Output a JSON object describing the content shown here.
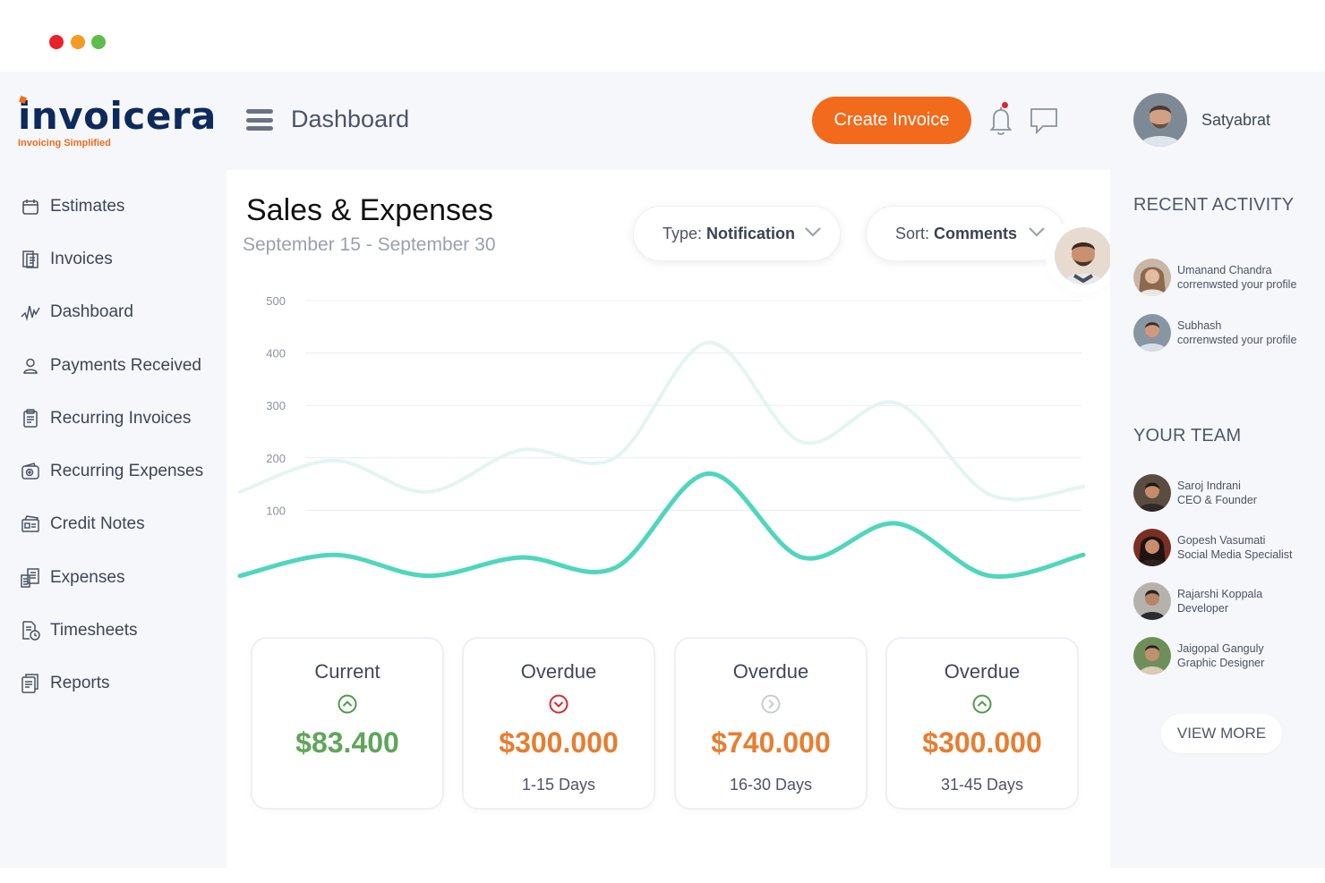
{
  "window": {
    "controls": [
      "close",
      "minimize",
      "maximize"
    ]
  },
  "brand": {
    "name": "invoicera",
    "tagline": "Invoicing Simplified",
    "navy": "#0e2a5c",
    "accent": "#f26a1b"
  },
  "sidebar": {
    "items": [
      {
        "label": "Estimates",
        "icon": "calendar-icon"
      },
      {
        "label": "Invoices",
        "icon": "invoice-icon"
      },
      {
        "label": "Dashboard",
        "icon": "activity-icon"
      },
      {
        "label": "Payments Received",
        "icon": "user-icon"
      },
      {
        "label": "Recurring Invoices",
        "icon": "document-icon"
      },
      {
        "label": "Recurring Expenses",
        "icon": "wallet-icon"
      },
      {
        "label": "Credit Notes",
        "icon": "credit-note-icon"
      },
      {
        "label": "Expenses",
        "icon": "receipt-icon"
      },
      {
        "label": "Timesheets",
        "icon": "timesheet-icon"
      },
      {
        "label": "Reports",
        "icon": "report-icon"
      }
    ]
  },
  "header": {
    "title": "Dashboard",
    "create_label": "Create Invoice",
    "has_notification": true
  },
  "main": {
    "title": "Sales & Expenses",
    "date_range": "September 15 - September 30",
    "type_filter": {
      "prefix": "Type:",
      "value": "Notification"
    },
    "sort_filter": {
      "prefix": "Sort:",
      "value": "Comments"
    }
  },
  "chart_data": {
    "type": "line",
    "title": "",
    "xlabel": "",
    "ylabel": "",
    "ylim": [
      0,
      500
    ],
    "yticks": [
      100,
      200,
      300,
      400,
      500
    ],
    "grid": true,
    "x": [
      0,
      1,
      2,
      3,
      4,
      5,
      6,
      7,
      8,
      9
    ],
    "series": [
      {
        "values": [
          -25,
          15,
          -25,
          10,
          -10,
          170,
          10,
          75,
          -25,
          15
        ],
        "color": "#4fd6bd"
      },
      {
        "values": [
          135,
          195,
          135,
          215,
          200,
          420,
          230,
          305,
          130,
          145
        ],
        "color": "#e2f6f1"
      }
    ]
  },
  "cards": [
    {
      "title": "Current",
      "value": "$83.400",
      "days": "",
      "status": "up",
      "value_color": "#5fa55a",
      "icon_color": "#4f9a4a"
    },
    {
      "title": "Overdue",
      "value": "$300.000",
      "days": "1-15 Days",
      "status": "down",
      "value_color": "#e67e30",
      "icon_color": "#d8292f"
    },
    {
      "title": "Overdue",
      "value": "$740.000",
      "days": "16-30 Days",
      "status": "right",
      "value_color": "#e67e30",
      "icon_color": "#c9ccd2"
    },
    {
      "title": "Overdue",
      "value": "$300.000",
      "days": "31-45 Days",
      "status": "up",
      "value_color": "#e67e30",
      "icon_color": "#4f9a4a"
    }
  ],
  "user": {
    "name": "Satyabrat"
  },
  "recent_activity": {
    "title": "RECENT ACTIVITY",
    "items": [
      {
        "name": "Umanand Chandra",
        "action": "correnwsted your profile"
      },
      {
        "name": "Subhash",
        "action": "correnwsted your profile"
      }
    ]
  },
  "team": {
    "title": "YOUR TEAM",
    "members": [
      {
        "name": "Saroj Indrani",
        "role": "CEO & Founder"
      },
      {
        "name": "Gopesh Vasumati",
        "role": "Social Media Specialist"
      },
      {
        "name": "Rajarshi Koppala",
        "role": "Developer"
      },
      {
        "name": "Jaigopal Ganguly",
        "role": "Graphic Designer"
      }
    ],
    "view_more": "VIEW MORE"
  }
}
